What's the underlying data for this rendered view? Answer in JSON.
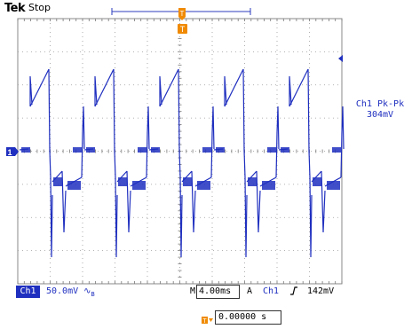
{
  "header": {
    "brand": "Tek",
    "status": "Stop"
  },
  "markers": {
    "trigger_position": "T",
    "ground": "1"
  },
  "measurement": {
    "label": "Ch1 Pk-Pk",
    "value": "304mV"
  },
  "footer": {
    "channel": "Ch1",
    "vertical_scale": "50.0mV",
    "bandwidth_icon": "bandwidth-limit-icon",
    "horizontal_prefix": "M",
    "timebase": "4.00ms",
    "acquire_prefix": "A",
    "trigger_source": "Ch1",
    "trigger_slope_icon": "rising-edge-icon",
    "trigger_level": "142mV"
  },
  "position": {
    "label_icon": "trigger-position-arrow-icon",
    "value": "0.00000 s"
  },
  "colors": {
    "trace": "#1f2fbf",
    "grid": "#8a8a8a",
    "trigger": "#f08a00",
    "text": "#000000"
  }
}
